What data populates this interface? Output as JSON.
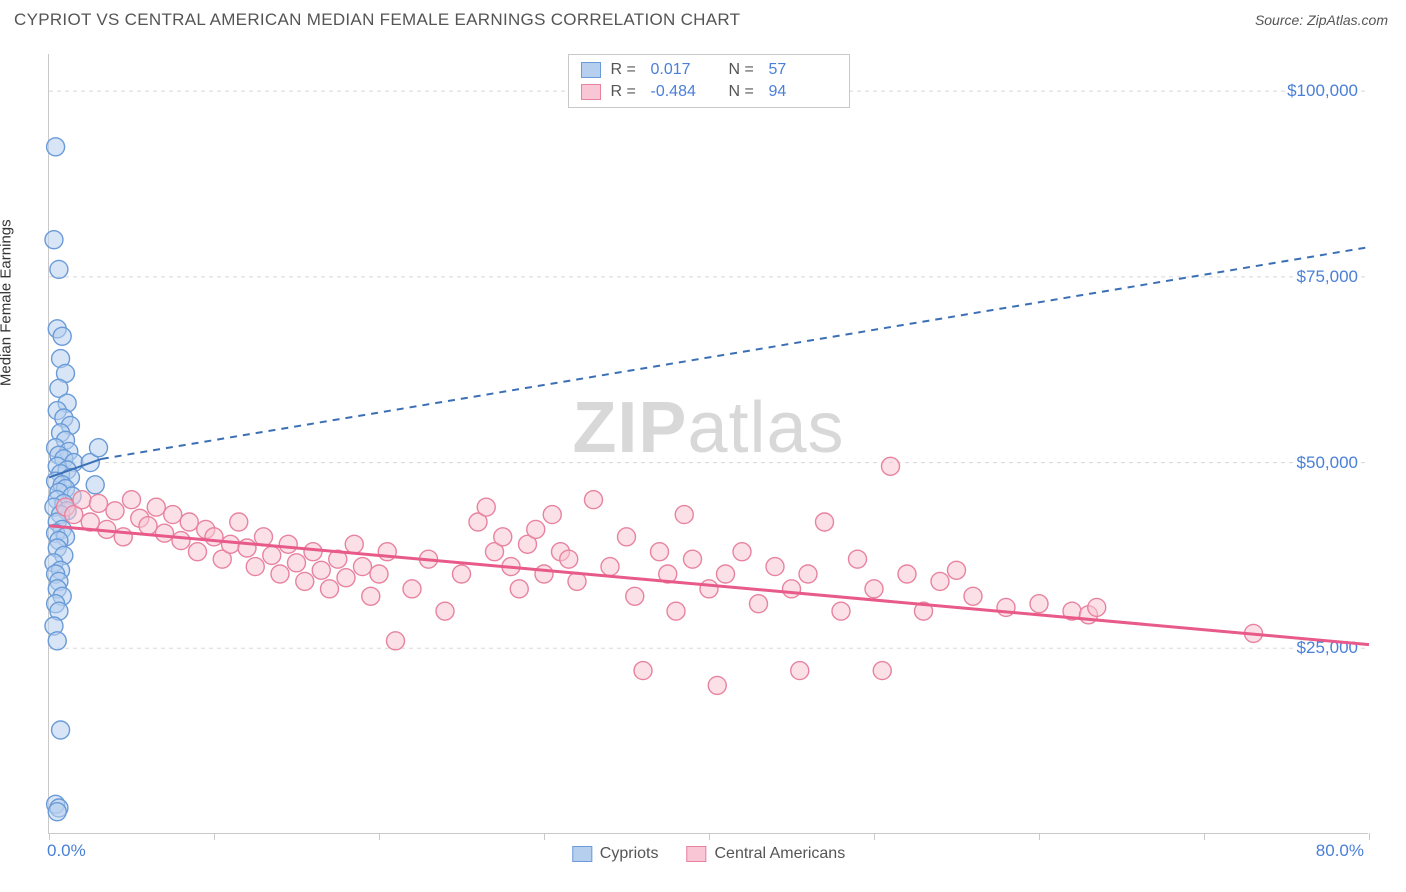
{
  "title": "CYPRIOT VS CENTRAL AMERICAN MEDIAN FEMALE EARNINGS CORRELATION CHART",
  "source_label": "Source: ZipAtlas.com",
  "ylabel": "Median Female Earnings",
  "watermark": {
    "bold": "ZIP",
    "rest": "atlas"
  },
  "chart": {
    "type": "scatter-correlation",
    "background_color": "#ffffff",
    "grid_color": "#d8d8d8",
    "axis_color": "#c9c9c9",
    "text_accent_color": "#4a7fd8",
    "xlim": [
      0,
      80
    ],
    "ylim": [
      0,
      105000
    ],
    "x_ticks": [
      0,
      10,
      20,
      30,
      40,
      50,
      60,
      70,
      80
    ],
    "y_ticks": [
      25000,
      50000,
      75000,
      100000
    ],
    "y_tick_labels": [
      "$25,000",
      "$50,000",
      "$75,000",
      "$100,000"
    ],
    "x_left_label": "0.0%",
    "x_right_label": "80.0%",
    "marker_radius": 9,
    "marker_stroke_width": 1.4,
    "series": [
      {
        "name": "Cypriots",
        "fill": "#b7cfee",
        "stroke": "#6a9bd8",
        "fill_opacity": 0.55,
        "r_value": "0.017",
        "n_value": "57",
        "trend": {
          "x1": 0,
          "y1": 48000,
          "x2": 3.2,
          "y2": 50500,
          "dashed_after_x": 3.2,
          "dx2": 80,
          "dy2": 79000,
          "stroke": "#3b6fb5",
          "width": 2,
          "dash": "7,6"
        },
        "points": [
          [
            0.4,
            92500
          ],
          [
            0.3,
            80000
          ],
          [
            0.6,
            76000
          ],
          [
            0.5,
            68000
          ],
          [
            0.8,
            67000
          ],
          [
            0.7,
            64000
          ],
          [
            1.0,
            62000
          ],
          [
            0.6,
            60000
          ],
          [
            1.1,
            58000
          ],
          [
            0.5,
            57000
          ],
          [
            0.9,
            56000
          ],
          [
            1.3,
            55000
          ],
          [
            0.7,
            54000
          ],
          [
            1.0,
            53000
          ],
          [
            0.4,
            52000
          ],
          [
            1.2,
            51500
          ],
          [
            0.6,
            51000
          ],
          [
            0.9,
            50500
          ],
          [
            1.5,
            50000
          ],
          [
            0.5,
            49500
          ],
          [
            1.1,
            49000
          ],
          [
            0.7,
            48500
          ],
          [
            1.3,
            48000
          ],
          [
            0.4,
            47500
          ],
          [
            0.8,
            47000
          ],
          [
            1.0,
            46500
          ],
          [
            0.6,
            46000
          ],
          [
            1.4,
            45500
          ],
          [
            0.5,
            45000
          ],
          [
            0.9,
            44500
          ],
          [
            0.3,
            44000
          ],
          [
            1.1,
            43500
          ],
          [
            0.7,
            43000
          ],
          [
            0.5,
            42000
          ],
          [
            0.8,
            41000
          ],
          [
            0.4,
            40500
          ],
          [
            1.0,
            40000
          ],
          [
            0.6,
            39500
          ],
          [
            0.5,
            38500
          ],
          [
            0.9,
            37500
          ],
          [
            0.3,
            36500
          ],
          [
            0.7,
            35500
          ],
          [
            0.4,
            35000
          ],
          [
            0.6,
            34000
          ],
          [
            0.5,
            33000
          ],
          [
            0.8,
            32000
          ],
          [
            0.4,
            31000
          ],
          [
            0.6,
            30000
          ],
          [
            0.3,
            28000
          ],
          [
            0.5,
            26000
          ],
          [
            0.7,
            14000
          ],
          [
            0.4,
            4000
          ],
          [
            0.6,
            3500
          ],
          [
            0.5,
            3000
          ],
          [
            2.5,
            50000
          ],
          [
            2.8,
            47000
          ],
          [
            3.0,
            52000
          ]
        ]
      },
      {
        "name": "Central Americans",
        "fill": "#f8c6d4",
        "stroke": "#e8839f",
        "fill_opacity": 0.55,
        "r_value": "-0.484",
        "n_value": "94",
        "trend": {
          "x1": 0,
          "y1": 41500,
          "x2": 80,
          "y2": 25500,
          "stroke": "#e85a8a",
          "width": 3,
          "dash": null
        },
        "points": [
          [
            1.0,
            44000
          ],
          [
            1.5,
            43000
          ],
          [
            2.0,
            45000
          ],
          [
            2.5,
            42000
          ],
          [
            3.0,
            44500
          ],
          [
            3.5,
            41000
          ],
          [
            4.0,
            43500
          ],
          [
            4.5,
            40000
          ],
          [
            5.0,
            45000
          ],
          [
            5.5,
            42500
          ],
          [
            6.0,
            41500
          ],
          [
            6.5,
            44000
          ],
          [
            7.0,
            40500
          ],
          [
            7.5,
            43000
          ],
          [
            8.0,
            39500
          ],
          [
            8.5,
            42000
          ],
          [
            9.0,
            38000
          ],
          [
            9.5,
            41000
          ],
          [
            10.0,
            40000
          ],
          [
            10.5,
            37000
          ],
          [
            11.0,
            39000
          ],
          [
            11.5,
            42000
          ],
          [
            12.0,
            38500
          ],
          [
            12.5,
            36000
          ],
          [
            13.0,
            40000
          ],
          [
            13.5,
            37500
          ],
          [
            14.0,
            35000
          ],
          [
            14.5,
            39000
          ],
          [
            15.0,
            36500
          ],
          [
            15.5,
            34000
          ],
          [
            16.0,
            38000
          ],
          [
            16.5,
            35500
          ],
          [
            17.0,
            33000
          ],
          [
            17.5,
            37000
          ],
          [
            18.0,
            34500
          ],
          [
            18.5,
            39000
          ],
          [
            19.0,
            36000
          ],
          [
            19.5,
            32000
          ],
          [
            20.0,
            35000
          ],
          [
            20.5,
            38000
          ],
          [
            21.0,
            26000
          ],
          [
            22.0,
            33000
          ],
          [
            23.0,
            37000
          ],
          [
            24.0,
            30000
          ],
          [
            25.0,
            35000
          ],
          [
            26.0,
            42000
          ],
          [
            26.5,
            44000
          ],
          [
            27.0,
            38000
          ],
          [
            27.5,
            40000
          ],
          [
            28.0,
            36000
          ],
          [
            28.5,
            33000
          ],
          [
            29.0,
            39000
          ],
          [
            29.5,
            41000
          ],
          [
            30.0,
            35000
          ],
          [
            30.5,
            43000
          ],
          [
            31.0,
            38000
          ],
          [
            31.5,
            37000
          ],
          [
            32.0,
            34000
          ],
          [
            33.0,
            45000
          ],
          [
            34.0,
            36000
          ],
          [
            35.0,
            40000
          ],
          [
            35.5,
            32000
          ],
          [
            36.0,
            22000
          ],
          [
            37.0,
            38000
          ],
          [
            37.5,
            35000
          ],
          [
            38.0,
            30000
          ],
          [
            38.5,
            43000
          ],
          [
            39.0,
            37000
          ],
          [
            40.0,
            33000
          ],
          [
            40.5,
            20000
          ],
          [
            41.0,
            35000
          ],
          [
            42.0,
            38000
          ],
          [
            43.0,
            31000
          ],
          [
            44.0,
            36000
          ],
          [
            45.0,
            33000
          ],
          [
            45.5,
            22000
          ],
          [
            46.0,
            35000
          ],
          [
            47.0,
            42000
          ],
          [
            48.0,
            30000
          ],
          [
            49.0,
            37000
          ],
          [
            50.0,
            33000
          ],
          [
            50.5,
            22000
          ],
          [
            52.0,
            35000
          ],
          [
            53.0,
            30000
          ],
          [
            54.0,
            34000
          ],
          [
            55.0,
            35500
          ],
          [
            56.0,
            32000
          ],
          [
            58.0,
            30500
          ],
          [
            60.0,
            31000
          ],
          [
            62.0,
            30000
          ],
          [
            63.0,
            29500
          ],
          [
            63.5,
            30500
          ],
          [
            73.0,
            27000
          ],
          [
            51.0,
            49500
          ]
        ]
      }
    ]
  },
  "legend_bottom": [
    {
      "label": "Cypriots",
      "fill": "#b7cfee",
      "stroke": "#6a9bd8"
    },
    {
      "label": "Central Americans",
      "fill": "#f8c6d4",
      "stroke": "#e8839f"
    }
  ]
}
